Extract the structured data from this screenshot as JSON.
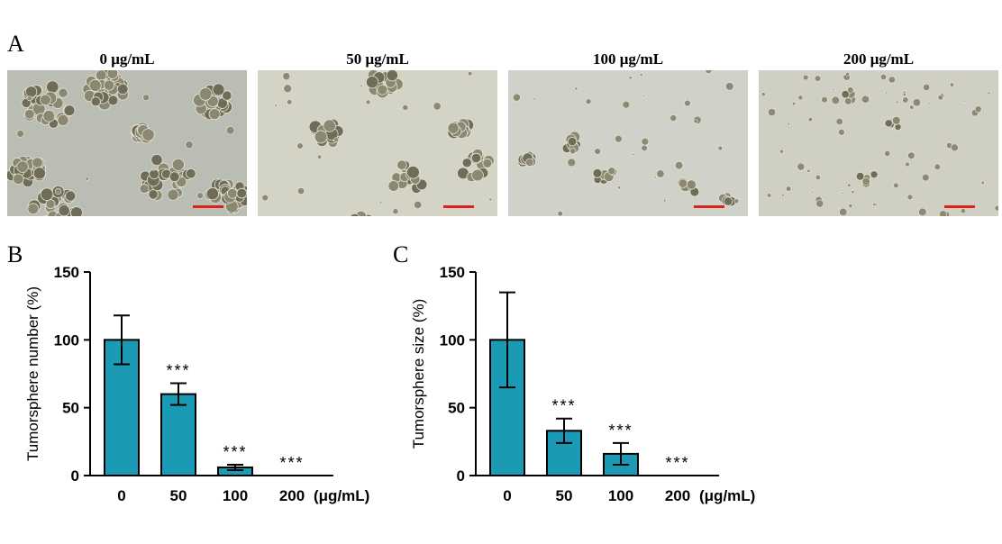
{
  "panels": {
    "a": {
      "letter": "A"
    },
    "b": {
      "letter": "B"
    },
    "c": {
      "letter": "C"
    }
  },
  "micrographs": [
    {
      "title": "0 μg/mL",
      "background": "#b9bdb3",
      "density": "dense clusters"
    },
    {
      "title": "50 μg/mL",
      "background": "#d3d4c5",
      "density": "medium clusters"
    },
    {
      "title": "100 μg/mL",
      "background": "#d0d1c8",
      "density": "small clusters"
    },
    {
      "title": "200 μg/mL",
      "background": "#cfcfc3",
      "density": "scattered single cells"
    }
  ],
  "scale_bar_color": "#e0201a",
  "bar_color": "#1a9ab5",
  "chart_data": [
    {
      "type": "bar",
      "panel": "B",
      "categories": [
        "0",
        "50",
        "100",
        "200"
      ],
      "values": [
        100,
        60,
        6,
        0
      ],
      "errors": [
        18,
        8,
        2,
        0
      ],
      "significance": [
        "",
        "***",
        "***",
        "***"
      ],
      "unit_label": "(μg/mL)",
      "ylabel": "Tumorsphere number  (%)",
      "ylim": [
        0,
        150
      ],
      "yticks": [
        0,
        50,
        100,
        150
      ]
    },
    {
      "type": "bar",
      "panel": "C",
      "categories": [
        "0",
        "50",
        "100",
        "200"
      ],
      "values": [
        100,
        33,
        16,
        0
      ],
      "errors": [
        35,
        9,
        8,
        0
      ],
      "significance": [
        "",
        "***",
        "***",
        "***"
      ],
      "unit_label": "(μg/mL)",
      "ylabel": "Tumorsphere size  (%)",
      "ylim": [
        0,
        150
      ],
      "yticks": [
        0,
        50,
        100,
        150
      ]
    }
  ]
}
